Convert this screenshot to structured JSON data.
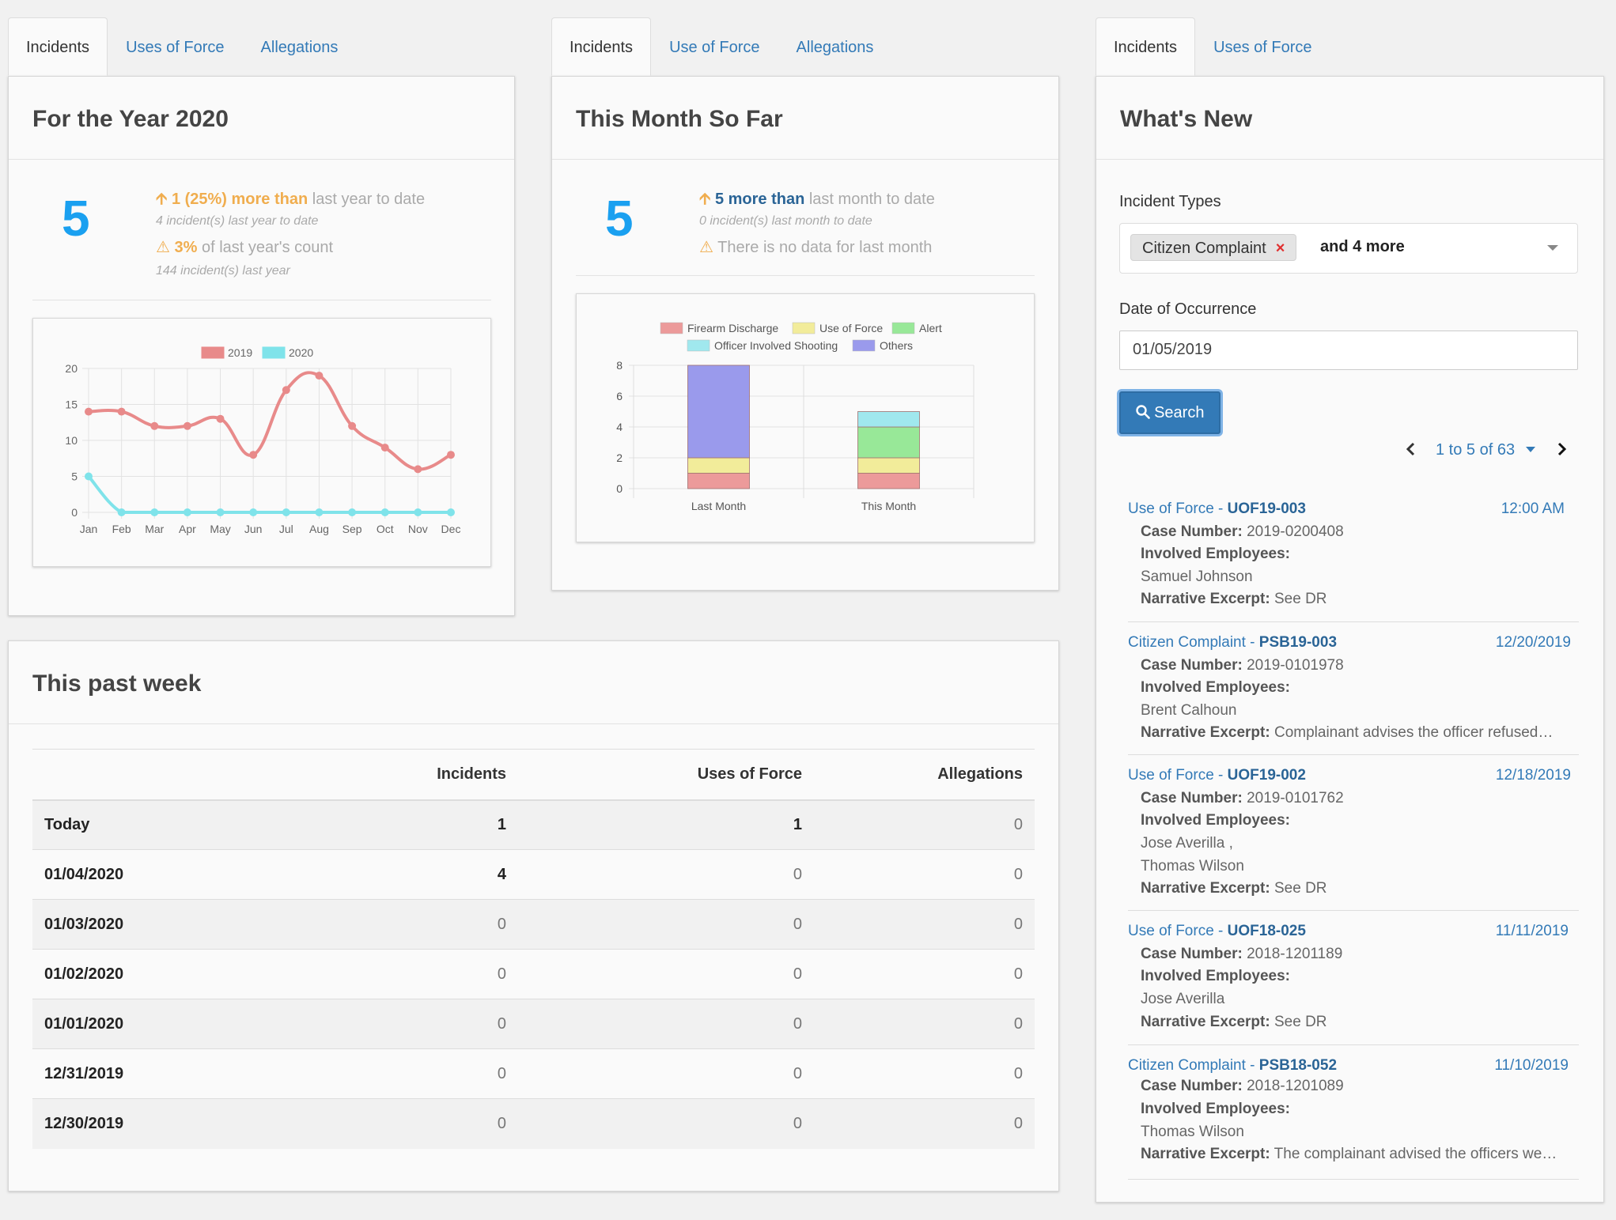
{
  "col1": {
    "tabs": [
      "Incidents",
      "Uses of Force",
      "Allegations"
    ],
    "title": "For the Year 2020",
    "count": "5",
    "stat1_highlight": "1 (25%) more than",
    "stat1_rest": "last year to date",
    "stat1_sub": "4 incident(s) last year to date",
    "stat2_highlight": "3%",
    "stat2_rest": "of last year's count",
    "stat2_sub": "144 incident(s) last year"
  },
  "col2": {
    "tabs": [
      "Incidents",
      "Use of Force",
      "Allegations"
    ],
    "title": "This Month So Far",
    "count": "5",
    "stat1_highlight": "5 more than",
    "stat1_rest": "last month to date",
    "stat1_sub": "0 incident(s) last month to date",
    "stat2_text": "There is no data for last month"
  },
  "col3": {
    "tabs": [
      "Incidents",
      "Uses of Force"
    ],
    "title": "What's New",
    "incident_types_label": "Incident Types",
    "chip": "Citizen Complaint",
    "more": "and 4 more",
    "date_label": "Date of Occurrence",
    "date_value": "01/05/2019",
    "search_label": "Search",
    "pager": "1 to 5 of 63",
    "items": [
      {
        "type": "Use of Force - ",
        "id": "UOF19-003",
        "date": "12:00 AM",
        "case_label": "Case Number:",
        "case": "2019-0200408",
        "emp_label": "Involved Employees:",
        "employees": [
          "Samuel Johnson"
        ],
        "narr_label": "Narrative Excerpt:",
        "narr": "See DR"
      },
      {
        "type": "Citizen Complaint - ",
        "id": "PSB19-003",
        "date": "12/20/2019",
        "case_label": "Case Number:",
        "case": "2019-0101978",
        "emp_label": "Involved Employees:",
        "employees": [
          "Brent Calhoun"
        ],
        "narr_label": "Narrative Excerpt:",
        "narr": "Complainant advises the officer refused…"
      },
      {
        "type": "Use of Force - ",
        "id": "UOF19-002",
        "date": "12/18/2019",
        "case_label": "Case Number:",
        "case": "2019-0101762",
        "emp_label": "Involved Employees:",
        "employees": [
          "Jose Averilla ,",
          "Thomas Wilson"
        ],
        "narr_label": "Narrative Excerpt:",
        "narr": "See DR"
      },
      {
        "type": "Use of Force - ",
        "id": "UOF18-025",
        "date": "11/11/2019",
        "case_label": "Case Number:",
        "case": "2018-1201189",
        "emp_label": "Involved Employees:",
        "employees": [
          "Jose Averilla"
        ],
        "narr_label": "Narrative Excerpt:",
        "narr": "See DR"
      },
      {
        "type": "Citizen Complaint - ",
        "id": "PSB18-052",
        "date": "11/10/2019",
        "case_label": "Case Number:",
        "case": "2018-1201089",
        "emp_label": "Involved Employees:",
        "employees": [
          "Thomas Wilson"
        ],
        "narr_label": "Narrative Excerpt:",
        "narr": "The complainant advised the officers we…"
      }
    ]
  },
  "week": {
    "title": "This past week",
    "headers": [
      "",
      "Incidents",
      "Uses of Force",
      "Allegations"
    ],
    "rows": [
      [
        "Today",
        "1",
        "1",
        "0"
      ],
      [
        "01/04/2020",
        "4",
        "0",
        "0"
      ],
      [
        "01/03/2020",
        "0",
        "0",
        "0"
      ],
      [
        "01/02/2020",
        "0",
        "0",
        "0"
      ],
      [
        "01/01/2020",
        "0",
        "0",
        "0"
      ],
      [
        "12/31/2019",
        "0",
        "0",
        "0"
      ],
      [
        "12/30/2019",
        "0",
        "0",
        "0"
      ]
    ]
  },
  "colors": {
    "accent": "#337ab7",
    "bignum": "#1aa0f0",
    "warning": "#f0ad4e",
    "s2019": "#e88a8a",
    "s2020": "#7fe3ea"
  },
  "chart_data": [
    {
      "type": "line",
      "categories": [
        "Jan",
        "Feb",
        "Mar",
        "Apr",
        "May",
        "Jun",
        "Jul",
        "Aug",
        "Sep",
        "Oct",
        "Nov",
        "Dec"
      ],
      "series": [
        {
          "name": "2019",
          "color": "#e88a8a",
          "values": [
            14,
            14,
            12,
            12,
            13,
            8,
            17,
            19,
            12,
            9,
            6,
            8
          ]
        },
        {
          "name": "2020",
          "color": "#7fe3ea",
          "values": [
            5,
            0,
            0,
            0,
            0,
            0,
            0,
            0,
            0,
            0,
            0,
            0
          ]
        }
      ],
      "ylim": [
        0,
        20
      ],
      "yticks": [
        0,
        5,
        10,
        15,
        20
      ],
      "grid": true,
      "legend": "top"
    },
    {
      "type": "bar",
      "stacked": true,
      "categories": [
        "Last Month",
        "This Month"
      ],
      "series": [
        {
          "name": "Firearm Discharge",
          "color": "#ec9a9a",
          "values": [
            1,
            1
          ]
        },
        {
          "name": "Use of Force",
          "color": "#f2ec9a",
          "values": [
            1,
            1
          ]
        },
        {
          "name": "Alert",
          "color": "#98e898",
          "values": [
            0,
            2
          ]
        },
        {
          "name": "Officer Involved Shooting",
          "color": "#a0e8ee",
          "values": [
            0,
            1
          ]
        },
        {
          "name": "Others",
          "color": "#9a9aec",
          "values": [
            6,
            0
          ]
        }
      ],
      "ylim": [
        0,
        8
      ],
      "yticks": [
        0,
        2,
        4,
        6,
        8
      ],
      "grid": true,
      "legend": "top"
    }
  ]
}
